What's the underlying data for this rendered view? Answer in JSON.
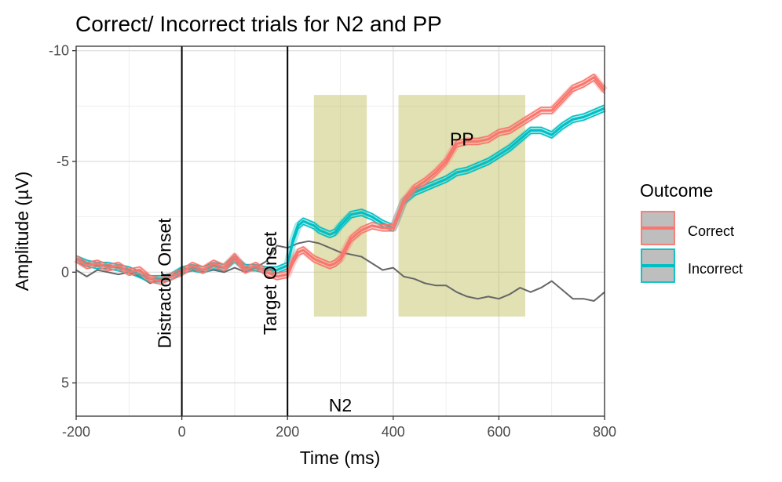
{
  "chart_data": {
    "type": "line",
    "title": "Correct/ Incorrect trials for N2 and PP",
    "xlabel": "Time (ms)",
    "ylabel": "Amplitude (µV)",
    "xlim": [
      -200,
      800
    ],
    "ylim": [
      6.5,
      -10.2
    ],
    "y_reversed": true,
    "xticks": [
      -200,
      0,
      200,
      400,
      600,
      800
    ],
    "xtick_labels": [
      "-200",
      "0",
      "200",
      "400",
      "600",
      "800"
    ],
    "yticks": [
      -10,
      -5,
      0,
      5
    ],
    "ytick_labels": [
      "-10",
      "-5",
      "0",
      "5"
    ],
    "grid": true,
    "legend": {
      "title": "Outcome",
      "position": "right",
      "entries": [
        "Correct",
        "Incorrect"
      ]
    },
    "colors": {
      "correct": "#F8766D",
      "incorrect": "#00BFC4",
      "difference": "#666666",
      "window": "#BDBD58",
      "event_line": "#000000"
    },
    "event_lines": [
      {
        "x": 0,
        "label": "Distractor Onset",
        "label_y": 0.5
      },
      {
        "x": 200,
        "label": "Target Onset",
        "label_y": 0.5
      }
    ],
    "windows": [
      {
        "xmin": 250,
        "xmax": 350,
        "ymin": -8,
        "ymax": 2,
        "label": "N2",
        "label_x": 300,
        "label_y": 6
      },
      {
        "xmin": 410,
        "xmax": 650,
        "ymin": -8,
        "ymax": 2,
        "label": "PP",
        "label_x": 530,
        "label_y": -6
      }
    ],
    "series": [
      {
        "name": "Correct",
        "x": [
          -200,
          -180,
          -160,
          -140,
          -120,
          -100,
          -80,
          -60,
          -40,
          -20,
          0,
          20,
          40,
          60,
          80,
          100,
          120,
          140,
          160,
          180,
          200,
          210,
          220,
          230,
          240,
          250,
          260,
          270,
          280,
          290,
          300,
          320,
          340,
          360,
          380,
          400,
          420,
          440,
          460,
          480,
          500,
          520,
          540,
          560,
          580,
          600,
          620,
          640,
          660,
          680,
          700,
          720,
          740,
          760,
          780,
          800
        ],
        "y": [
          -0.6,
          -0.3,
          -0.4,
          -0.2,
          -0.3,
          0,
          -0.1,
          0.3,
          0.4,
          0.2,
          0,
          -0.3,
          -0.1,
          -0.4,
          -0.2,
          -0.7,
          -0.1,
          -0.3,
          0,
          0.2,
          0.1,
          -0.5,
          -0.9,
          -1.0,
          -0.8,
          -0.6,
          -0.5,
          -0.4,
          -0.3,
          -0.4,
          -0.6,
          -1.5,
          -1.9,
          -2.1,
          -2.0,
          -2.0,
          -3.2,
          -3.8,
          -4.1,
          -4.5,
          -5.0,
          -5.8,
          -5.9,
          -5.9,
          -6.0,
          -6.3,
          -6.4,
          -6.7,
          -7.0,
          -7.3,
          -7.3,
          -7.8,
          -8.3,
          -8.5,
          -8.8,
          -8.2
        ]
      },
      {
        "name": "Incorrect",
        "x": [
          -200,
          -180,
          -160,
          -140,
          -120,
          -100,
          -80,
          -60,
          -40,
          -20,
          0,
          20,
          40,
          60,
          80,
          100,
          120,
          140,
          160,
          180,
          200,
          210,
          220,
          230,
          240,
          250,
          260,
          270,
          280,
          290,
          300,
          320,
          340,
          360,
          380,
          400,
          420,
          440,
          460,
          480,
          500,
          520,
          540,
          560,
          580,
          600,
          620,
          640,
          660,
          680,
          700,
          720,
          740,
          760,
          780,
          800
        ],
        "y": [
          -0.6,
          -0.4,
          -0.3,
          -0.3,
          -0.2,
          -0.1,
          0.1,
          0.3,
          0.3,
          0.2,
          -0.1,
          -0.2,
          -0.1,
          -0.3,
          -0.2,
          -0.6,
          -0.2,
          -0.2,
          -0.1,
          -0.1,
          -0.3,
          -1.4,
          -2.1,
          -2.3,
          -2.2,
          -2.1,
          -1.9,
          -1.8,
          -1.7,
          -1.8,
          -2.1,
          -2.6,
          -2.7,
          -2.5,
          -2.2,
          -2.0,
          -3.2,
          -3.6,
          -3.8,
          -4.0,
          -4.2,
          -4.5,
          -4.6,
          -4.8,
          -5.0,
          -5.3,
          -5.6,
          -6.0,
          -6.4,
          -6.4,
          -6.2,
          -6.6,
          -6.9,
          -7.0,
          -7.2,
          -7.4
        ]
      },
      {
        "name": "",
        "x": [
          -200,
          -180,
          -160,
          -140,
          -120,
          -100,
          -80,
          -60,
          -40,
          -20,
          0,
          20,
          40,
          60,
          80,
          100,
          120,
          140,
          160,
          180,
          200,
          220,
          240,
          260,
          280,
          300,
          320,
          340,
          360,
          380,
          400,
          420,
          440,
          460,
          480,
          500,
          520,
          540,
          560,
          580,
          600,
          620,
          640,
          660,
          680,
          700,
          720,
          740,
          760,
          780,
          800
        ],
        "y": [
          -0.1,
          0.2,
          -0.1,
          0,
          0.1,
          0,
          0.2,
          0.5,
          0.3,
          0.2,
          -0.2,
          -0.1,
          0,
          -0.1,
          0,
          -0.2,
          0,
          -0.2,
          -0.5,
          -1.2,
          -1.1,
          -1.3,
          -1.4,
          -1.3,
          -1.1,
          -0.9,
          -0.8,
          -0.7,
          -0.4,
          -0.1,
          -0.2,
          0.2,
          0.3,
          0.5,
          0.6,
          0.6,
          0.9,
          1.1,
          1.2,
          1.1,
          1.2,
          1.0,
          0.7,
          0.9,
          0.7,
          0.4,
          0.8,
          1.2,
          1.2,
          1.3,
          0.9
        ]
      }
    ]
  }
}
